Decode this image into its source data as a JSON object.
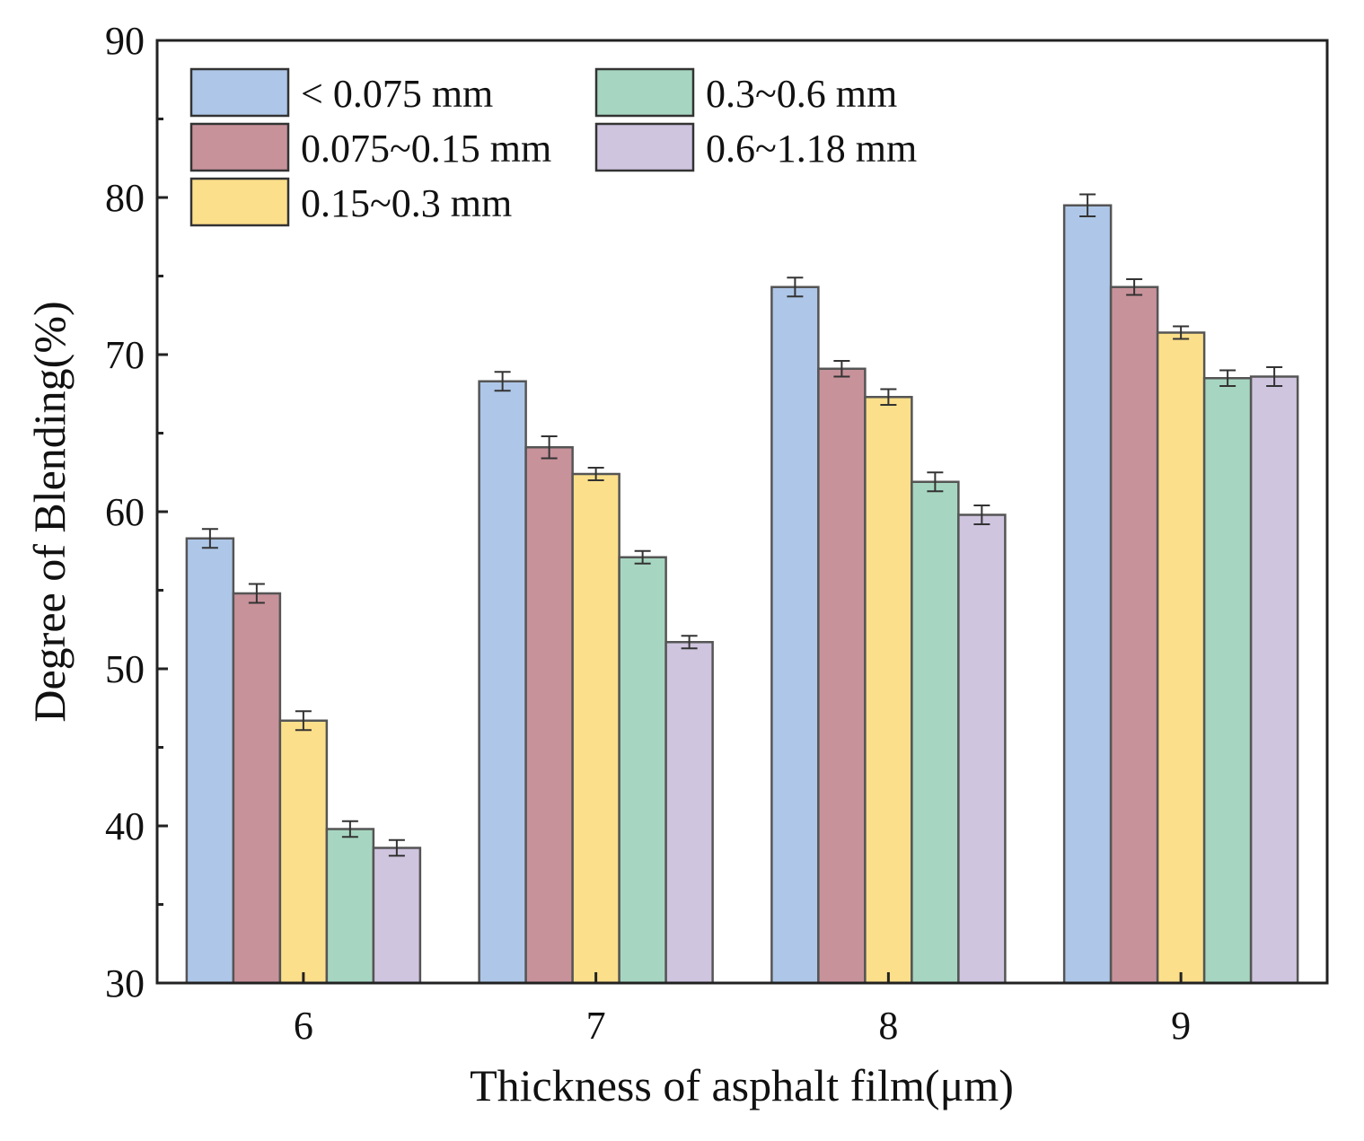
{
  "chart_data": {
    "type": "bar",
    "xlabel": "Thickness of asphalt film(μm)",
    "ylabel": "Degree of Blending(%)",
    "ylim": [
      30,
      90
    ],
    "yticks": [
      30,
      40,
      50,
      60,
      70,
      80,
      90
    ],
    "categories": [
      "6",
      "7",
      "8",
      "9"
    ],
    "series": [
      {
        "name": "< 0.075 mm",
        "color": "#aec7e8",
        "values": [
          58.3,
          68.3,
          74.3,
          79.5
        ],
        "errors": [
          0.6,
          0.6,
          0.6,
          0.7
        ]
      },
      {
        "name": "0.075~0.15 mm",
        "color": "#c8929b",
        "values": [
          54.8,
          64.1,
          69.1,
          74.3
        ],
        "errors": [
          0.6,
          0.7,
          0.5,
          0.5
        ]
      },
      {
        "name": "0.15~0.3 mm",
        "color": "#fcdf8a",
        "values": [
          46.7,
          62.4,
          67.3,
          71.4
        ],
        "errors": [
          0.6,
          0.4,
          0.5,
          0.4
        ]
      },
      {
        "name": "0.3~0.6 mm",
        "color": "#a6d6c1",
        "values": [
          39.8,
          57.1,
          61.9,
          68.5
        ],
        "errors": [
          0.5,
          0.4,
          0.6,
          0.5
        ]
      },
      {
        "name": "0.6~1.18 mm",
        "color": "#cfc5df",
        "values": [
          38.6,
          51.7,
          59.8,
          68.6
        ],
        "errors": [
          0.5,
          0.4,
          0.6,
          0.6
        ]
      }
    ],
    "legend": "top-left, 2 columns",
    "grid": false
  }
}
